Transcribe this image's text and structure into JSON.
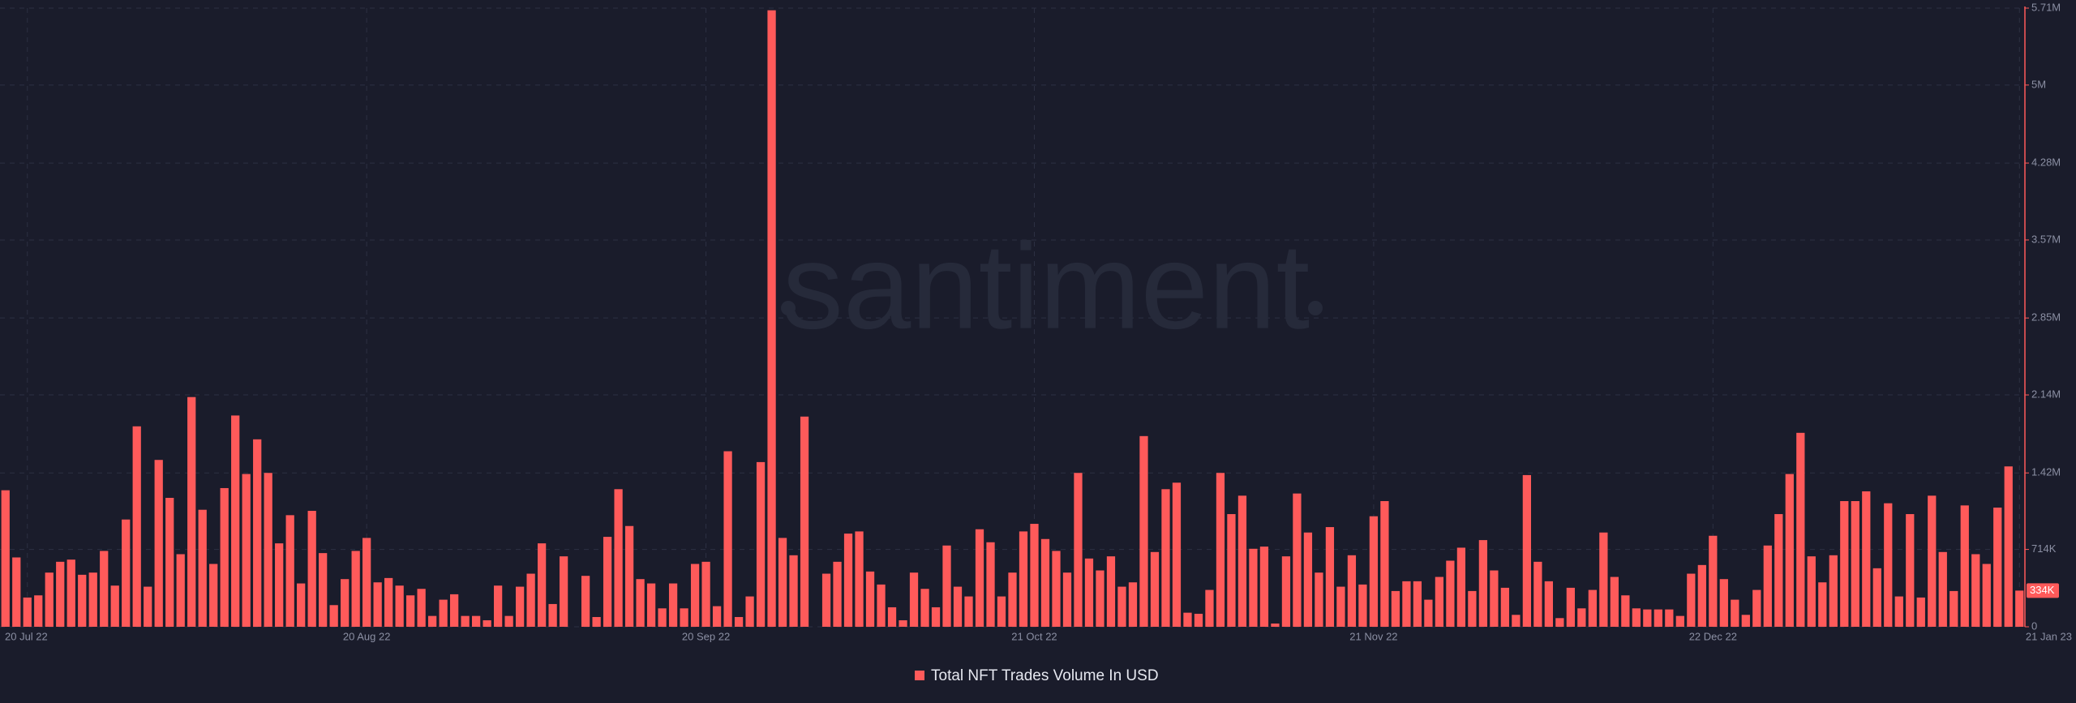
{
  "chart_data": {
    "type": "bar",
    "watermark": "santiment",
    "categories": [
      null,
      null,
      "20 Jul 22",
      null,
      null,
      null,
      null,
      null,
      null,
      null,
      null,
      null,
      null,
      null,
      null,
      null,
      null,
      null,
      null,
      null,
      null,
      null,
      null,
      null,
      null,
      null,
      null,
      null,
      null,
      null,
      null,
      null,
      null,
      "20 Aug 22",
      null,
      null,
      null,
      null,
      null,
      null,
      null,
      null,
      null,
      null,
      null,
      null,
      null,
      null,
      null,
      null,
      null,
      null,
      null,
      null,
      null,
      null,
      null,
      null,
      null,
      null,
      null,
      null,
      null,
      null,
      "20 Sep 22",
      null,
      null,
      null,
      null,
      null,
      null,
      null,
      null,
      null,
      null,
      null,
      null,
      null,
      null,
      null,
      null,
      null,
      null,
      null,
      null,
      null,
      null,
      null,
      null,
      null,
      null,
      null,
      null,
      null,
      "21 Oct 22",
      null,
      null,
      null,
      null,
      null,
      null,
      null,
      null,
      null,
      null,
      null,
      null,
      null,
      null,
      null,
      null,
      null,
      null,
      null,
      null,
      null,
      null,
      null,
      null,
      null,
      null,
      null,
      null,
      null,
      null,
      "21 Nov 22",
      null,
      null,
      null,
      null,
      null,
      null,
      null,
      null,
      null,
      null,
      null,
      null,
      null,
      null,
      null,
      null,
      null,
      null,
      null,
      null,
      null,
      null,
      null,
      null,
      null,
      null,
      null,
      null,
      null,
      null,
      "22 Dec 22",
      null,
      null,
      null,
      null,
      null,
      null,
      null,
      null,
      null,
      null,
      null,
      null,
      null,
      null,
      null,
      null,
      null,
      null,
      null,
      null,
      null,
      null,
      null,
      null,
      null,
      null,
      null,
      "21 Jan 23"
    ],
    "series": [
      {
        "name": "Total NFT Trades Volume In USD",
        "color": "#ff5a5a",
        "values": [
          1260000,
          640000,
          270000,
          290000,
          500000,
          600000,
          620000,
          480000,
          500000,
          700000,
          380000,
          990000,
          1850000,
          370000,
          1540000,
          1190000,
          670000,
          2120000,
          1080000,
          580000,
          1280000,
          1950000,
          1410000,
          1730000,
          1420000,
          770000,
          1030000,
          400000,
          1070000,
          680000,
          200000,
          440000,
          700000,
          820000,
          410000,
          450000,
          380000,
          290000,
          350000,
          100000,
          250000,
          300000,
          100000,
          100000,
          60000,
          380000,
          100000,
          370000,
          490000,
          770000,
          210000,
          650000,
          null,
          470000,
          90000,
          830000,
          1270000,
          930000,
          440000,
          400000,
          170000,
          400000,
          170000,
          580000,
          600000,
          190000,
          1620000,
          90000,
          280000,
          1520000,
          5690000,
          820000,
          660000,
          1940000,
          null,
          490000,
          600000,
          860000,
          880000,
          510000,
          390000,
          180000,
          60000,
          500000,
          350000,
          180000,
          750000,
          370000,
          280000,
          900000,
          780000,
          280000,
          500000,
          880000,
          950000,
          810000,
          700000,
          500000,
          1420000,
          630000,
          520000,
          650000,
          370000,
          410000,
          1760000,
          690000,
          1270000,
          1330000,
          130000,
          120000,
          340000,
          1420000,
          1040000,
          1210000,
          720000,
          740000,
          30000,
          650000,
          1230000,
          870000,
          500000,
          920000,
          370000,
          660000,
          390000,
          1020000,
          1160000,
          330000,
          420000,
          420000,
          250000,
          460000,
          610000,
          730000,
          330000,
          800000,
          520000,
          360000,
          110000,
          1400000,
          600000,
          420000,
          80000,
          360000,
          170000,
          340000,
          870000,
          460000,
          290000,
          170000,
          160000,
          160000,
          160000,
          100000,
          490000,
          570000,
          840000,
          440000,
          250000,
          110000,
          340000,
          750000,
          1040000,
          1410000,
          1790000,
          650000,
          410000,
          660000,
          1160000,
          1160000,
          1250000,
          540000,
          1140000,
          280000,
          1040000,
          270000,
          1210000,
          690000,
          330000,
          1120000,
          670000,
          580000,
          1100000,
          1480000,
          334000
        ],
        "value_labels": [
          null,
          null,
          null,
          null,
          null,
          null,
          null,
          null,
          null,
          null,
          null,
          null,
          null,
          null,
          null,
          null,
          null,
          null,
          null,
          null,
          null,
          null,
          null,
          null,
          null,
          null,
          null,
          null,
          null,
          null,
          null,
          null,
          null,
          null,
          null,
          null,
          null,
          null,
          null,
          null,
          null,
          null,
          null,
          null,
          null,
          null,
          null,
          null,
          null,
          null,
          null,
          null,
          null,
          null,
          null,
          null,
          null,
          null,
          null,
          null,
          null,
          null,
          null,
          null,
          null,
          null,
          null,
          null,
          null,
          null,
          null,
          null,
          null,
          null,
          null,
          null,
          null,
          null,
          null,
          null,
          null,
          null,
          null,
          null,
          null,
          null,
          null,
          null,
          null,
          null,
          null,
          null,
          null,
          null,
          null,
          null,
          null,
          null,
          null,
          null,
          null,
          null,
          null,
          null,
          null,
          null,
          null,
          null,
          null,
          null,
          null,
          null,
          null,
          null,
          null,
          null,
          null,
          null,
          null,
          null,
          null,
          null,
          null,
          null,
          null,
          null,
          null,
          null,
          null,
          null,
          null,
          null,
          null,
          null,
          null,
          null,
          null,
          null,
          null,
          null,
          null,
          null,
          null,
          null,
          null,
          null,
          null,
          null,
          null,
          null,
          null,
          null,
          null,
          null,
          null,
          null,
          null,
          null,
          null,
          null,
          null,
          null,
          null,
          null,
          null,
          null,
          null,
          null,
          null,
          null,
          null,
          null,
          null,
          null,
          null,
          null,
          null,
          null,
          null,
          null,
          null,
          null,
          null,
          null,
          "334K"
        ]
      }
    ],
    "ylim": [
      0,
      5710000
    ],
    "yticks": [
      0,
      {
        "value": 714000,
        "label": "714K"
      },
      {
        "value": 1420000,
        "label": "1.42M"
      },
      {
        "value": 2140000,
        "label": "2.14M"
      },
      {
        "value": 2850000,
        "label": "2.85M"
      },
      {
        "value": 3570000,
        "label": "3.57M"
      },
      {
        "value": 4280000,
        "label": "4.28M"
      },
      {
        "value": 5000000,
        "label": "5M"
      },
      {
        "value": 5710000,
        "label": "5.71M"
      }
    ],
    "grid": true
  }
}
